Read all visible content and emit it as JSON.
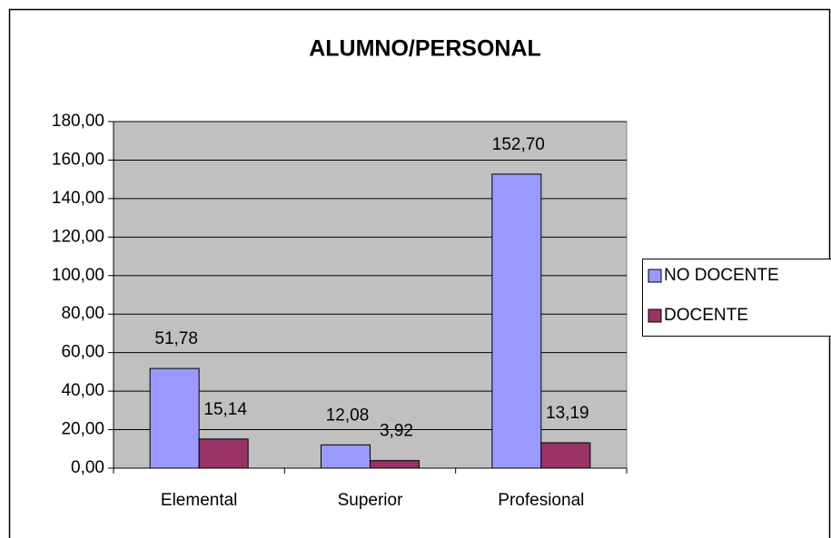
{
  "chart_data": {
    "type": "bar",
    "title": "ALUMNO/PERSONAL",
    "categories": [
      "Elemental",
      "Superior",
      "Profesional"
    ],
    "series": [
      {
        "name": "NO DOCENTE",
        "color": "#9999ff",
        "values": [
          51.78,
          12.08,
          152.7
        ],
        "value_labels": [
          "51,78",
          "12,08",
          "152,70"
        ]
      },
      {
        "name": "DOCENTE",
        "color": "#993366",
        "values": [
          15.14,
          3.92,
          13.19
        ],
        "value_labels": [
          "15,14",
          "3,92",
          "13,19"
        ]
      }
    ],
    "ylim": [
      0,
      180
    ],
    "yticks": [
      {
        "value": 0,
        "label": "0,00"
      },
      {
        "value": 20,
        "label": "20,00"
      },
      {
        "value": 40,
        "label": "40,00"
      },
      {
        "value": 60,
        "label": "60,00"
      },
      {
        "value": 80,
        "label": "80,00"
      },
      {
        "value": 100,
        "label": "100,00"
      },
      {
        "value": 120,
        "label": "120,00"
      },
      {
        "value": 140,
        "label": "140,00"
      },
      {
        "value": 160,
        "label": "160,00"
      },
      {
        "value": 180,
        "label": "180,00"
      }
    ],
    "grid": true,
    "legend": "right"
  }
}
